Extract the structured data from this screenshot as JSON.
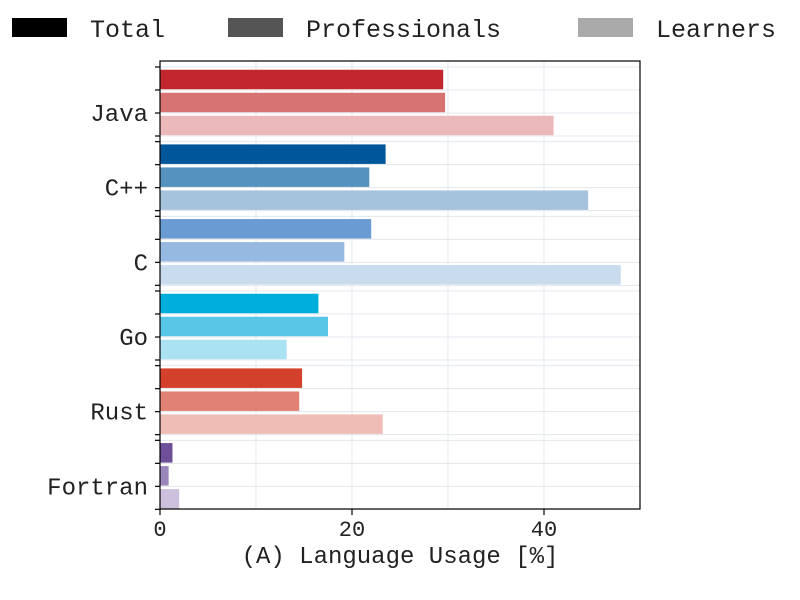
{
  "chart_data": {
    "type": "bar",
    "orientation": "horizontal",
    "categories": [
      "Java",
      "C++",
      "C",
      "Go",
      "Rust",
      "Fortran"
    ],
    "series": [
      {
        "name": "Total",
        "values": [
          29.5,
          23.5,
          22.0,
          16.5,
          14.8,
          1.3
        ]
      },
      {
        "name": "Professionals",
        "values": [
          29.7,
          21.8,
          19.2,
          17.5,
          14.5,
          0.9
        ]
      },
      {
        "name": "Learners",
        "values": [
          41.0,
          44.6,
          48.0,
          13.2,
          23.2,
          2.0
        ]
      }
    ],
    "bar_colors": [
      [
        "#c1272d",
        "#d77373",
        "#ebb9b9"
      ],
      [
        "#00569b",
        "#5592bd",
        "#a6c3dd"
      ],
      [
        "#6a9bd3",
        "#95b9e0",
        "#c8dbef"
      ],
      [
        "#00aedc",
        "#58c6e6",
        "#abe2f2"
      ],
      [
        "#d3402c",
        "#e08174",
        "#efbcb6"
      ],
      [
        "#6f4e9a",
        "#9b86bb",
        "#ccc0dc"
      ]
    ],
    "legend": {
      "position": "top",
      "entries": [
        {
          "label": "Total",
          "color": "#000000"
        },
        {
          "label": "Professionals",
          "color": "#555555"
        },
        {
          "label": "Learners",
          "color": "#aaaaaa"
        }
      ]
    },
    "xlabel": "(A) Language Usage [%]",
    "ylabel": "",
    "xlim": [
      0,
      50
    ],
    "xticks": [
      0,
      20,
      40
    ],
    "grid": true
  }
}
